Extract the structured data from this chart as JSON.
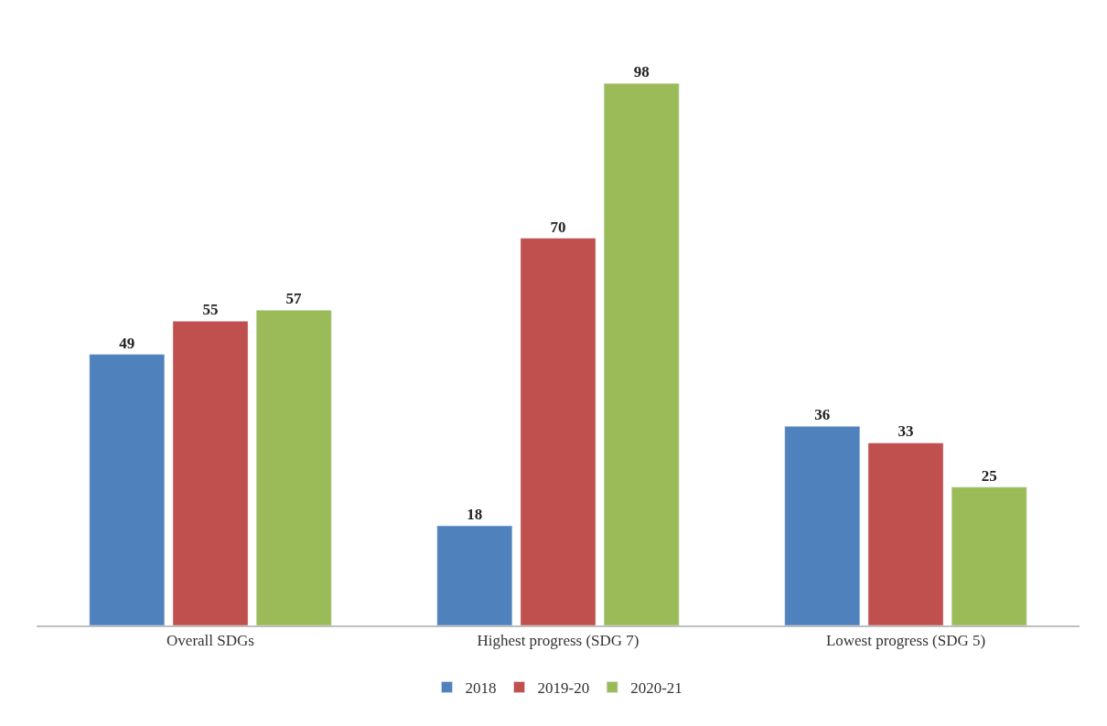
{
  "chart_data": {
    "type": "bar",
    "categories": [
      "Overall SDGs",
      "Highest progress (SDG 7)",
      "Lowest progress (SDG 5)"
    ],
    "series": [
      {
        "name": "2018",
        "color": "#4f81bd",
        "values": [
          49,
          18,
          36
        ]
      },
      {
        "name": "2019-20",
        "color": "#c0504d",
        "values": [
          55,
          70,
          33
        ]
      },
      {
        "name": "2020-21",
        "color": "#9bbb59",
        "values": [
          57,
          98,
          25
        ]
      }
    ],
    "data_labels": true,
    "legend": "bottom",
    "tick_labels": "x"
  }
}
